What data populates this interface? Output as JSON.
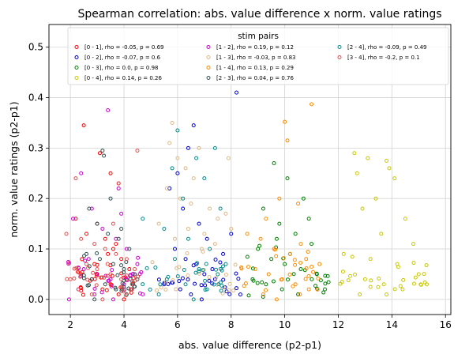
{
  "chart_data": {
    "type": "scatter",
    "title": "Spearman correlation: abs. value difference x norm. value ratings",
    "xlabel": "abs. value difference (p2-p1)",
    "ylabel": "norm. value ratings (p2-p1)",
    "xlim": [
      1.2,
      16.2
    ],
    "ylim": [
      -0.03,
      0.545
    ],
    "xticks": [
      2,
      4,
      6,
      8,
      10,
      12,
      14,
      16
    ],
    "yticks": [
      0.0,
      0.1,
      0.2,
      0.3,
      0.4,
      0.5
    ],
    "grid": true,
    "legend": {
      "title": "stim pairs",
      "placement": "top",
      "columns": 3
    },
    "series": [
      {
        "name": "[0 - 1], rho = -0.05, p = 0.69",
        "color": "#ff0000",
        "x_range": [
          2.0,
          4.4
        ],
        "points": [
          [
            2.5,
            0.345
          ],
          [
            3.1,
            0.29
          ],
          [
            3.5,
            0.25
          ],
          [
            3.8,
            0.23
          ],
          [
            2.2,
            0.16
          ],
          [
            2.6,
            0.13
          ],
          [
            3.0,
            0.15
          ],
          [
            3.3,
            0.12
          ],
          [
            3.6,
            0.1
          ],
          [
            3.9,
            0.08
          ],
          [
            4.2,
            0.06
          ],
          [
            2.4,
            0.05
          ],
          [
            2.8,
            0.04
          ],
          [
            3.2,
            0.02
          ],
          [
            3.5,
            0.03
          ],
          [
            3.8,
            0.01
          ],
          [
            4.0,
            0.0
          ],
          [
            2.9,
            0.07
          ],
          [
            3.4,
            0.09
          ],
          [
            3.7,
            0.11
          ]
        ]
      },
      {
        "name": "[0 - 2], rho = -0.07, p = 0.6",
        "color": "#0000cc",
        "x_range": [
          5.2,
          8.4
        ],
        "points": [
          [
            8.2,
            0.41
          ],
          [
            6.6,
            0.345
          ],
          [
            6.4,
            0.3
          ],
          [
            6.0,
            0.25
          ],
          [
            5.7,
            0.22
          ],
          [
            6.2,
            0.18
          ],
          [
            6.8,
            0.15
          ],
          [
            7.1,
            0.12
          ],
          [
            5.9,
            0.1
          ],
          [
            6.3,
            0.08
          ],
          [
            6.7,
            0.07
          ],
          [
            7.0,
            0.05
          ],
          [
            7.4,
            0.04
          ],
          [
            5.5,
            0.03
          ],
          [
            6.1,
            0.02
          ],
          [
            6.5,
            0.01
          ],
          [
            6.9,
            0.0
          ],
          [
            7.3,
            0.06
          ],
          [
            7.7,
            0.09
          ],
          [
            8.0,
            0.13
          ]
        ]
      },
      {
        "name": "[0 - 3], rho = 0.0, p = 0.98",
        "color": "#008000",
        "x_range": [
          8.5,
          11.8
        ],
        "points": [
          [
            9.6,
            0.27
          ],
          [
            10.1,
            0.24
          ],
          [
            10.7,
            0.2
          ],
          [
            9.2,
            0.18
          ],
          [
            9.8,
            0.15
          ],
          [
            10.4,
            0.13
          ],
          [
            11.0,
            0.11
          ],
          [
            9.0,
            0.1
          ],
          [
            9.5,
            0.08
          ],
          [
            10.0,
            0.07
          ],
          [
            10.6,
            0.06
          ],
          [
            11.2,
            0.05
          ],
          [
            8.8,
            0.04
          ],
          [
            9.3,
            0.03
          ],
          [
            9.9,
            0.02
          ],
          [
            10.5,
            0.01
          ],
          [
            11.5,
            0.02
          ],
          [
            10.2,
            0.09
          ],
          [
            9.7,
            0.12
          ],
          [
            10.9,
            0.16
          ]
        ]
      },
      {
        "name": "[0 - 4], rho = 0.14, p = 0.26",
        "color": "#c8c800",
        "x_range": [
          12.0,
          15.4
        ],
        "points": [
          [
            12.6,
            0.29
          ],
          [
            13.1,
            0.28
          ],
          [
            13.8,
            0.275
          ],
          [
            13.9,
            0.26
          ],
          [
            12.7,
            0.25
          ],
          [
            14.1,
            0.24
          ],
          [
            13.4,
            0.2
          ],
          [
            12.9,
            0.18
          ],
          [
            14.5,
            0.16
          ],
          [
            13.6,
            0.13
          ],
          [
            14.8,
            0.11
          ],
          [
            12.2,
            0.09
          ],
          [
            13.2,
            0.08
          ],
          [
            14.2,
            0.07
          ],
          [
            15.0,
            0.05
          ],
          [
            13.0,
            0.04
          ],
          [
            13.7,
            0.03
          ],
          [
            14.4,
            0.02
          ],
          [
            12.8,
            0.01
          ],
          [
            15.3,
            0.03
          ]
        ]
      },
      {
        "name": "[1 - 2], rho = 0.19, p = 0.12",
        "color": "#cc00cc",
        "x_range": [
          1.9,
          4.8
        ],
        "points": [
          [
            3.4,
            0.375
          ],
          [
            2.4,
            0.25
          ],
          [
            3.8,
            0.22
          ],
          [
            2.1,
            0.16
          ],
          [
            2.8,
            0.18
          ],
          [
            3.2,
            0.14
          ],
          [
            3.7,
            0.12
          ],
          [
            4.1,
            0.1
          ],
          [
            4.5,
            0.07
          ],
          [
            2.5,
            0.06
          ],
          [
            3.0,
            0.05
          ],
          [
            3.5,
            0.04
          ],
          [
            4.0,
            0.03
          ],
          [
            2.3,
            0.02
          ],
          [
            2.9,
            0.01
          ],
          [
            3.6,
            0.0
          ],
          [
            4.3,
            0.02
          ],
          [
            1.95,
            0.0
          ],
          [
            4.7,
            0.01
          ],
          [
            3.9,
            0.17
          ]
        ]
      },
      {
        "name": "[1 - 3], rho = -0.03, p = 0.83",
        "color": "#deb887",
        "x_range": [
          5.0,
          8.2
        ],
        "points": [
          [
            5.7,
            0.31
          ],
          [
            6.0,
            0.28
          ],
          [
            6.3,
            0.26
          ],
          [
            6.8,
            0.3
          ],
          [
            5.6,
            0.22
          ],
          [
            6.1,
            0.2
          ],
          [
            6.5,
            0.19
          ],
          [
            7.2,
            0.18
          ],
          [
            7.8,
            0.17
          ],
          [
            5.3,
            0.15
          ],
          [
            6.4,
            0.14
          ],
          [
            7.0,
            0.13
          ],
          [
            7.5,
            0.16
          ],
          [
            8.0,
            0.14
          ],
          [
            5.9,
            0.12
          ],
          [
            6.9,
            0.1
          ],
          [
            7.4,
            0.11
          ],
          [
            7.9,
            0.28
          ],
          [
            5.8,
            0.35
          ],
          [
            6.6,
            0.24
          ]
        ]
      },
      {
        "name": "[1 - 4], rho = 0.13, p = 0.29",
        "color": "#ff8c00",
        "x_range": [
          8.3,
          11.5
        ],
        "points": [
          [
            11.0,
            0.387
          ],
          [
            10.0,
            0.352
          ],
          [
            10.1,
            0.315
          ],
          [
            9.8,
            0.2
          ],
          [
            10.5,
            0.19
          ],
          [
            9.3,
            0.16
          ],
          [
            8.6,
            0.13
          ],
          [
            9.1,
            0.12
          ],
          [
            9.6,
            0.1
          ],
          [
            10.2,
            0.09
          ],
          [
            10.8,
            0.08
          ],
          [
            11.3,
            0.07
          ],
          [
            8.9,
            0.06
          ],
          [
            9.4,
            0.05
          ],
          [
            9.9,
            0.04
          ],
          [
            10.4,
            0.03
          ],
          [
            10.9,
            0.02
          ],
          [
            9.2,
            0.01
          ],
          [
            9.7,
            0.0
          ],
          [
            10.6,
            0.11
          ]
        ]
      },
      {
        "name": "[2 - 3], rho = 0.04, p = 0.76",
        "color": "#2f4f4f",
        "x_range": [
          2.5,
          4.6
        ],
        "points": [
          [
            3.2,
            0.295
          ],
          [
            3.5,
            0.2
          ],
          [
            2.7,
            0.18
          ],
          [
            3.0,
            0.15
          ],
          [
            3.4,
            0.13
          ],
          [
            3.8,
            0.12
          ],
          [
            4.2,
            0.1
          ],
          [
            2.6,
            0.09
          ],
          [
            3.1,
            0.08
          ],
          [
            3.6,
            0.07
          ],
          [
            4.0,
            0.06
          ],
          [
            4.4,
            0.05
          ],
          [
            2.8,
            0.04
          ],
          [
            3.3,
            0.03
          ],
          [
            3.7,
            0.02
          ],
          [
            4.1,
            0.01
          ],
          [
            2.9,
            0.0
          ],
          [
            3.9,
            0.14
          ],
          [
            3.25,
            0.285
          ],
          [
            4.5,
            0.04
          ]
        ]
      },
      {
        "name": "[2 - 4], rho = -0.09, p = 0.49",
        "color": "#008b8b",
        "x_range": [
          4.6,
          8.0
        ],
        "points": [
          [
            6.0,
            0.335
          ],
          [
            7.4,
            0.3
          ],
          [
            6.7,
            0.28
          ],
          [
            5.8,
            0.26
          ],
          [
            7.0,
            0.24
          ],
          [
            6.2,
            0.2
          ],
          [
            7.6,
            0.18
          ],
          [
            4.7,
            0.16
          ],
          [
            5.5,
            0.14
          ],
          [
            6.4,
            0.12
          ],
          [
            7.2,
            0.1
          ],
          [
            5.9,
            0.08
          ],
          [
            6.8,
            0.06
          ],
          [
            7.5,
            0.05
          ],
          [
            5.6,
            0.04
          ],
          [
            6.3,
            0.03
          ],
          [
            7.1,
            0.02
          ],
          [
            5.3,
            0.01
          ],
          [
            6.6,
            0.0
          ],
          [
            7.8,
            0.07
          ]
        ]
      },
      {
        "name": "[3 - 4], rho = -0.2, p = 0.1",
        "color": "#e05050",
        "x_range": [
          1.7,
          4.6
        ],
        "points": [
          [
            4.5,
            0.295
          ],
          [
            3.8,
            0.23
          ],
          [
            2.2,
            0.24
          ],
          [
            1.85,
            0.13
          ],
          [
            2.4,
            0.12
          ],
          [
            2.9,
            0.11
          ],
          [
            3.3,
            0.1
          ],
          [
            3.7,
            0.09
          ],
          [
            4.1,
            0.08
          ],
          [
            2.6,
            0.07
          ],
          [
            3.0,
            0.06
          ],
          [
            3.5,
            0.05
          ],
          [
            3.9,
            0.04
          ],
          [
            4.3,
            0.03
          ],
          [
            2.3,
            0.02
          ],
          [
            2.8,
            0.01
          ],
          [
            3.2,
            0.0
          ],
          [
            4.4,
            0.06
          ],
          [
            2.0,
            0.04
          ],
          [
            3.6,
            0.15
          ]
        ]
      }
    ]
  }
}
